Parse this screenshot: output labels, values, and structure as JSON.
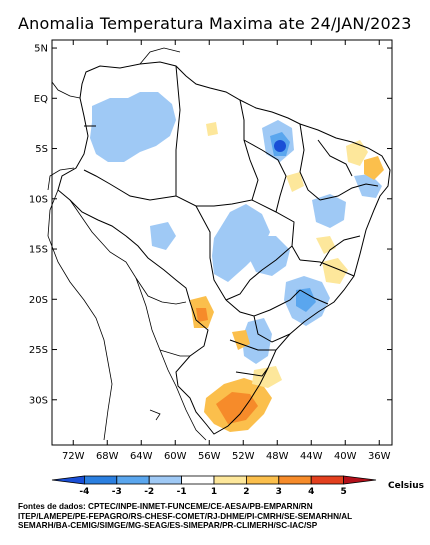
{
  "title": "Anomalia Temperatura Maxima ate 24/JAN/2023",
  "map": {
    "lat_ticks": [
      {
        "value": 5,
        "label": "5N"
      },
      {
        "value": 0,
        "label": "EQ"
      },
      {
        "value": -5,
        "label": "5S"
      },
      {
        "value": -10,
        "label": "10S"
      },
      {
        "value": -15,
        "label": "15S"
      },
      {
        "value": -20,
        "label": "20S"
      },
      {
        "value": -25,
        "label": "25S"
      },
      {
        "value": -30,
        "label": "30S"
      }
    ],
    "lon_ticks": [
      {
        "value": -72,
        "label": "72W"
      },
      {
        "value": -68,
        "label": "68W"
      },
      {
        "value": -64,
        "label": "64W"
      },
      {
        "value": -60,
        "label": "60W"
      },
      {
        "value": -56,
        "label": "56W"
      },
      {
        "value": -52,
        "label": "52W"
      },
      {
        "value": -48,
        "label": "48W"
      },
      {
        "value": -44,
        "label": "44W"
      },
      {
        "value": -40,
        "label": "40W"
      },
      {
        "value": -36,
        "label": "36W"
      }
    ]
  },
  "colorbar": {
    "unit_label": "Celsius",
    "tick_labels": [
      "-4",
      "-3",
      "-2",
      "-1",
      "1",
      "2",
      "3",
      "4",
      "5"
    ],
    "colors": [
      "#1a4fd6",
      "#2b7fe0",
      "#5aa6ee",
      "#9fc9f5",
      "#ffffff",
      "#fde79b",
      "#fbbf4c",
      "#f68b2a",
      "#e3401e",
      "#b3101a"
    ]
  },
  "credits": {
    "line1": "Fontes de dados: CPTEC/INPE-INMET-FUNCEME/CE-AESA/PB-EMPARN/RN",
    "line2": "ITEP/LAMEPE/PE-FEPAGRO/RS-CHESF-COMET/RJ-DHME/PI-CMRH/SE-SEMARHN/AL",
    "line3": "SEMARH/BA-CEMIG/SIMGE/MG-SEAG/ES-SIMEPAR/PR-CLIMERH/SC-IAC/SP"
  }
}
